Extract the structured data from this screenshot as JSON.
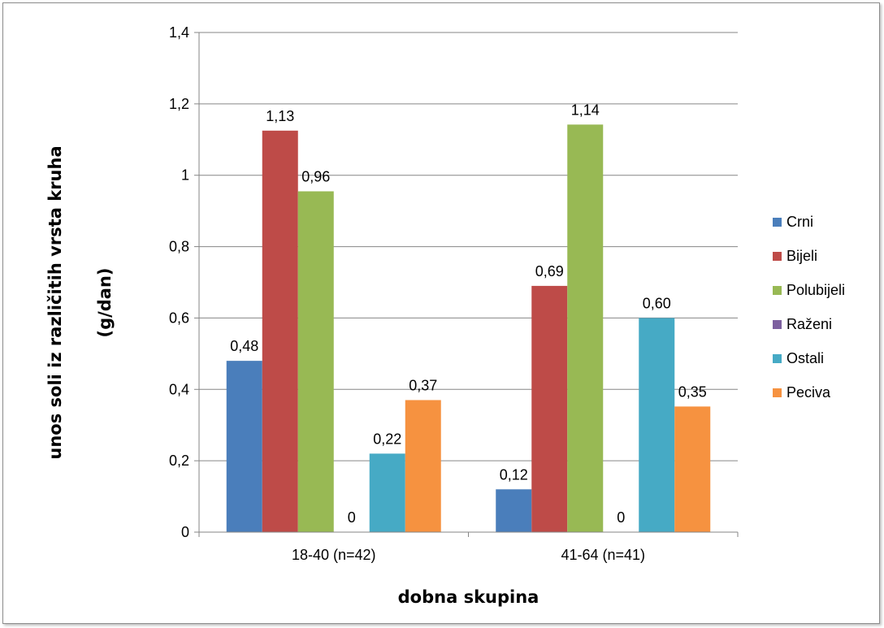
{
  "chart_data": {
    "type": "bar",
    "xlabel": "dobna skupina",
    "ylabel_lines": [
      "unos soli iz različitih vrsta kruha",
      "(g/dan)"
    ],
    "categories": [
      "18-40 (n=42)",
      "41-64 (n=41)"
    ],
    "ylim": [
      0,
      1.4
    ],
    "yticks": [
      "0",
      "0,2",
      "0,4",
      "0,6",
      "0,8",
      "1",
      "1,2",
      "1,4"
    ],
    "grid": true,
    "legend_position": "right",
    "series": [
      {
        "name": "Crni",
        "color": "#4a7ebb",
        "values": [
          0.48,
          0.12
        ],
        "labels": [
          "0,48",
          "0,12"
        ]
      },
      {
        "name": "Bijeli",
        "color": "#be4b48",
        "values": [
          1.125,
          0.69
        ],
        "labels": [
          "1,13",
          "0,69"
        ]
      },
      {
        "name": "Polubijeli",
        "color": "#98b954",
        "values": [
          0.955,
          1.142
        ],
        "labels": [
          "0,96",
          "1,14"
        ]
      },
      {
        "name": "Raženi",
        "color": "#7d60a0",
        "values": [
          0,
          0
        ],
        "labels": [
          "0",
          "0"
        ]
      },
      {
        "name": "Ostali",
        "color": "#46aac5",
        "values": [
          0.22,
          0.6
        ],
        "labels": [
          "0,22",
          "0,60"
        ]
      },
      {
        "name": "Peciva",
        "color": "#f69240",
        "values": [
          0.37,
          0.352
        ],
        "labels": [
          "0,37",
          "0,35"
        ]
      }
    ]
  }
}
